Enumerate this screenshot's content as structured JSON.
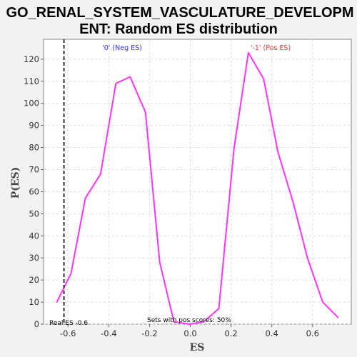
{
  "chart_data": {
    "type": "line",
    "title_line1": "GO_RENAL_SYSTEM_VASCULATURE_DEVELOPM",
    "title_line2": "ENT: Random ES distribution",
    "xlabel": "ES",
    "ylabel": "P(ES)",
    "xlim": [
      -0.72,
      0.79
    ],
    "ylim": [
      0,
      129
    ],
    "x_ticks": [
      -0.6,
      -0.4,
      -0.2,
      0.0,
      0.2,
      0.4,
      0.6
    ],
    "x_tick_labels": [
      "-0.6",
      "-0.4",
      "-0.2",
      "0.0",
      "0.2",
      "0.4",
      "0.6"
    ],
    "y_ticks": [
      0,
      10,
      20,
      30,
      40,
      50,
      60,
      70,
      80,
      90,
      100,
      110,
      120
    ],
    "grid": true,
    "series": [
      {
        "color": "#ff33ff",
        "x": [
          -0.655,
          -0.585,
          -0.515,
          -0.44,
          -0.365,
          -0.295,
          -0.22,
          -0.15,
          -0.08,
          -0.005,
          0.065,
          0.14,
          0.215,
          0.285,
          0.36,
          0.43,
          0.505,
          0.575,
          0.65,
          0.725
        ],
        "y": [
          10,
          23,
          57,
          68,
          109,
          112,
          96,
          28,
          1,
          0,
          1,
          7,
          80,
          123,
          111,
          78,
          55,
          30,
          10,
          3
        ]
      }
    ],
    "real_es": -0.62,
    "annotations": {
      "neg_label": "'0' (Neg ES)",
      "pos_label": "'-1' (Pos ES)",
      "neg_color": "#3333ff",
      "pos_color": "#ff3333",
      "real_es_label": "Real ES -0.6",
      "pos_scores_label": "Sets with pos scores: 50%"
    }
  }
}
